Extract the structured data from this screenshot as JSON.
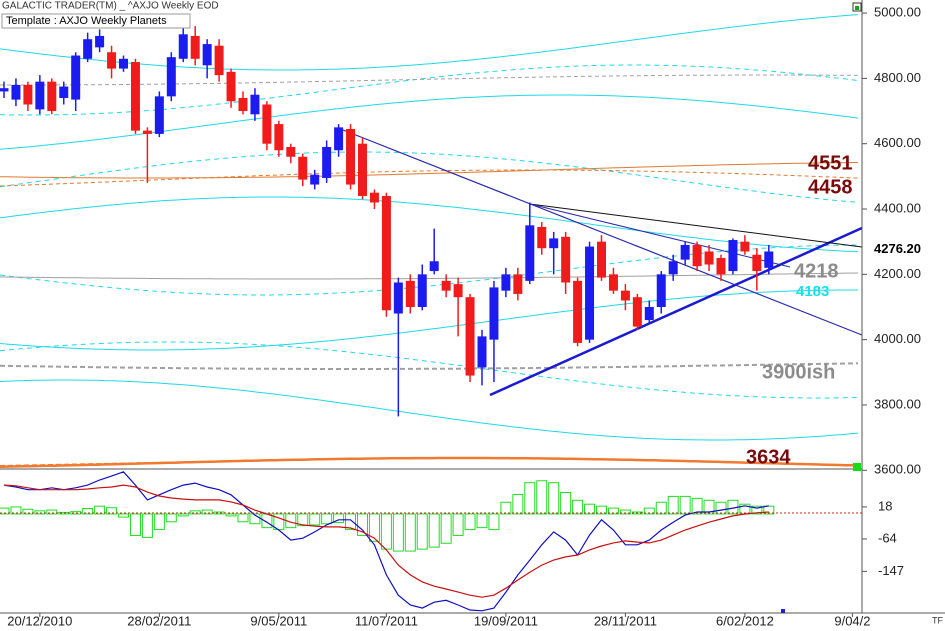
{
  "chart_data": {
    "type": "candlestick",
    "header": "GALACTIC TRADER(TM) _ ^AXJO Weekly EOD",
    "template": "Template : AXJO Weekly Planets",
    "corner_label": "TF",
    "categories": [
      null,
      null,
      null,
      "20/12/2010",
      null,
      null,
      null,
      null,
      null,
      null,
      null,
      null,
      null,
      "28/02/2011",
      null,
      null,
      null,
      null,
      null,
      null,
      null,
      null,
      null,
      "9/05/2011",
      null,
      null,
      null,
      null,
      null,
      null,
      null,
      null,
      "11/07/2011",
      null,
      null,
      null,
      null,
      null,
      null,
      null,
      null,
      null,
      "19/09/2011",
      null,
      null,
      null,
      null,
      null,
      null,
      null,
      null,
      null,
      "28/11/2011",
      null,
      null,
      null,
      null,
      null,
      null,
      null,
      null,
      null,
      "6/02/2012",
      null,
      null,
      null,
      null,
      null,
      null,
      null,
      null,
      "9/04/2"
    ],
    "open": [
      4760,
      4735,
      4780,
      4705,
      4790,
      4740,
      4735,
      4860,
      4895,
      4880,
      4830,
      4850,
      4640,
      4630,
      4745,
      4860,
      4930,
      4840,
      4900,
      4820,
      4740,
      4690,
      4720,
      4660,
      4590,
      4560,
      4475,
      4495,
      4580,
      4645,
      4600,
      4450,
      4440,
      4080,
      4180,
      4100,
      4210,
      4180,
      4170,
      4130,
      3915,
      4000,
      4150,
      4200,
      4180,
      4345,
      4280,
      4315,
      4180,
      4000,
      4300,
      4200,
      4150,
      4130,
      4060,
      4100,
      4200,
      4245,
      4290,
      4270,
      4250,
      4210,
      4300,
      4260,
      4220,
      null,
      null,
      null,
      null,
      null,
      null,
      null
    ],
    "high": [
      4790,
      4800,
      4790,
      4810,
      4800,
      4790,
      4880,
      4940,
      4950,
      4900,
      4870,
      4860,
      4650,
      4760,
      4880,
      4960,
      4960,
      4920,
      4920,
      4830,
      4760,
      4770,
      4730,
      4670,
      4600,
      4570,
      4520,
      4610,
      4660,
      4660,
      4620,
      4460,
      4450,
      4190,
      4200,
      4230,
      4340,
      4200,
      4190,
      4140,
      4030,
      4180,
      4220,
      4220,
      4420,
      4360,
      4330,
      4330,
      4190,
      4300,
      4320,
      4220,
      4170,
      4140,
      4120,
      4210,
      4260,
      4300,
      4300,
      4290,
      4260,
      4310,
      4320,
      4280,
      4290,
      null,
      null,
      null,
      null,
      null,
      null,
      null
    ],
    "low": [
      4740,
      4715,
      4700,
      4690,
      4690,
      4720,
      4700,
      4850,
      4880,
      4800,
      4820,
      4630,
      4480,
      4620,
      4730,
      4850,
      4840,
      4800,
      4790,
      4710,
      4690,
      4670,
      4580,
      4560,
      4540,
      4470,
      4460,
      4480,
      4560,
      4460,
      4430,
      4400,
      4070,
      3765,
      4080,
      4090,
      4200,
      4130,
      4010,
      3870,
      3860,
      3870,
      4130,
      4120,
      4170,
      4260,
      4200,
      4140,
      3980,
      3990,
      4180,
      4140,
      4090,
      4030,
      4050,
      4080,
      4180,
      4230,
      4210,
      4210,
      4180,
      4200,
      4260,
      4150,
      4200,
      null,
      null,
      null,
      null,
      null,
      null,
      null
    ],
    "close": [
      4770,
      4780,
      4720,
      4790,
      4700,
      4775,
      4870,
      4920,
      4930,
      4830,
      4860,
      4640,
      4630,
      4745,
      4865,
      4935,
      4860,
      4905,
      4810,
      4730,
      4700,
      4750,
      4600,
      4580,
      4560,
      4490,
      4505,
      4590,
      4650,
      4475,
      4440,
      4420,
      4090,
      4175,
      4100,
      4200,
      4240,
      4150,
      4130,
      3890,
      4010,
      4160,
      4200,
      4140,
      4350,
      4280,
      4310,
      4175,
      3990,
      4285,
      4190,
      4150,
      4120,
      4040,
      4100,
      4200,
      4240,
      4290,
      4225,
      4230,
      4200,
      4305,
      4270,
      4210,
      4270,
      null,
      null,
      null,
      null,
      null,
      null,
      null
    ],
    "up_color": "#1c1cf0",
    "down_color": "#f01c1c",
    "ylim": [
      3607,
      5040
    ],
    "yticks": [
      {
        "value": 3600,
        "label": "3600.00"
      },
      {
        "value": 3800,
        "label": "3800.00"
      },
      {
        "value": 4000,
        "label": "4000.00"
      },
      {
        "value": 4200,
        "label": "4200.00"
      },
      {
        "value": 4400,
        "label": "4400.00"
      },
      {
        "value": 4600,
        "label": "4600.00"
      },
      {
        "value": 4800,
        "label": "4800.00"
      },
      {
        "value": 5000,
        "label": "5000.00"
      }
    ],
    "last_price": {
      "value": 4276.2,
      "label": "4276.20"
    },
    "annotations": [
      {
        "text": "4551",
        "color": "#7a0a0a"
      },
      {
        "text": "4458",
        "color": "#7a0a0a"
      },
      {
        "text": "4218",
        "color": "#8c8c8c"
      },
      {
        "text": "4183",
        "color": "#19e0f0"
      },
      {
        "text": "3900ish",
        "color": "#8c8c8c"
      },
      {
        "text": "3634",
        "color": "#7a0a0a"
      }
    ],
    "indicator": {
      "type": "bar",
      "values": [
        15,
        18,
        12,
        8,
        10,
        4,
        6,
        14,
        20,
        16,
        -8,
        -55,
        -60,
        -40,
        -20,
        -5,
        8,
        10,
        5,
        -5,
        -20,
        -25,
        -35,
        -40,
        -35,
        -30,
        -28,
        -25,
        -22,
        -40,
        -55,
        -70,
        -90,
        -95,
        -95,
        -90,
        -85,
        -75,
        -55,
        -40,
        -35,
        -40,
        30,
        50,
        80,
        85,
        80,
        55,
        35,
        25,
        20,
        15,
        10,
        5,
        15,
        30,
        45,
        45,
        40,
        35,
        30,
        35,
        25,
        20,
        20,
        null,
        null,
        null,
        null,
        null,
        null,
        null
      ],
      "color": "#22dd22",
      "ylim": [
        -251,
        110
      ],
      "yticks": [
        18,
        -64,
        -147
      ],
      "lines": [
        {
          "color": "#1010c0",
          "values": [
            74,
            69,
            62,
            62,
            67,
            62,
            67,
            74,
            87,
            97,
            108,
            74,
            36,
            49,
            62,
            74,
            79,
            69,
            62,
            49,
            23,
            -3,
            -21,
            -41,
            -67,
            -62,
            -46,
            -28,
            -15,
            -15,
            -41,
            -79,
            -156,
            -208,
            -233,
            -241,
            -226,
            -221,
            -233,
            -246,
            -248,
            -241,
            -200,
            -156,
            -118,
            -79,
            -46,
            -67,
            -105,
            -54,
            -15,
            -41,
            -79,
            -79,
            -67,
            -41,
            -21,
            -3,
            5,
            5,
            10,
            15,
            21,
            15,
            21,
            null,
            null,
            null,
            null,
            null,
            null,
            null
          ]
        },
        {
          "color": "#c81010",
          "values": [
            74,
            72,
            67,
            62,
            62,
            62,
            62,
            64,
            67,
            69,
            74,
            69,
            56,
            46,
            41,
            38,
            36,
            36,
            36,
            31,
            23,
            10,
            0,
            -10,
            -21,
            -28,
            -31,
            -33,
            -33,
            -36,
            -46,
            -62,
            -92,
            -131,
            -156,
            -174,
            -185,
            -192,
            -200,
            -208,
            -213,
            -208,
            -190,
            -169,
            -149,
            -131,
            -118,
            -110,
            -105,
            -92,
            -82,
            -74,
            -69,
            -72,
            -74,
            -67,
            -54,
            -41,
            -31,
            -21,
            -13,
            -5,
            0,
            3,
            5,
            null,
            null,
            null,
            null,
            null,
            null,
            null
          ]
        }
      ]
    }
  }
}
